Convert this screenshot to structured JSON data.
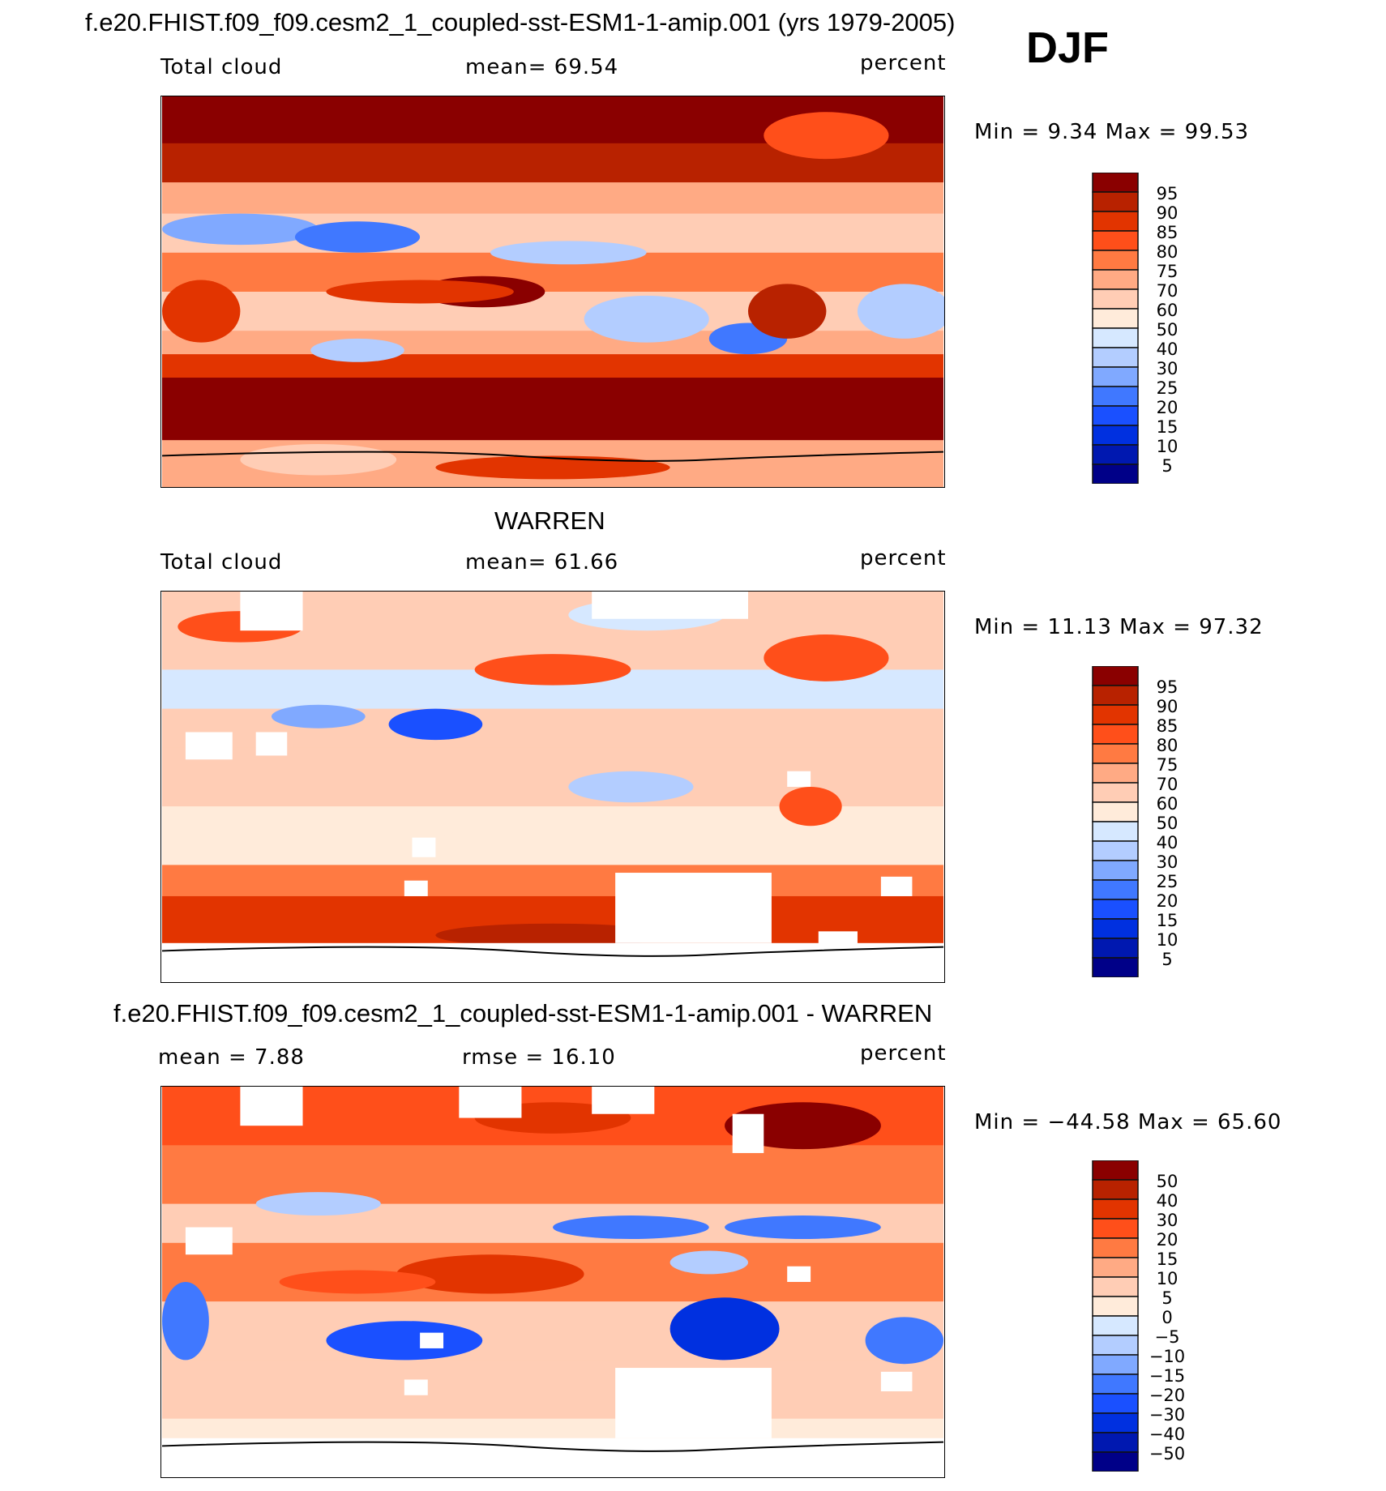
{
  "title": "f.e20.FHIST.f09_f09.cesm2_1_coupled-sst-ESM1-1-amip.001 (yrs 1979-2005)",
  "season": "DJF",
  "chart_data": [
    {
      "type": "heatmap",
      "title": "f.e20.FHIST.f09_f09.cesm2_1_coupled-sst-ESM1-1-amip.001 (yrs 1979-2005)",
      "left_label": "Total cloud",
      "center_label": "mean=   69.54",
      "units": "percent",
      "minmax": "Min =    9.34  Max =   99.53",
      "mean": 69.54,
      "min": 9.34,
      "max": 99.53,
      "colorbar_levels": [
        "95",
        "90",
        "85",
        "80",
        "75",
        "70",
        "60",
        "50",
        "40",
        "30",
        "25",
        "20",
        "15",
        "10",
        "5"
      ]
    },
    {
      "type": "heatmap",
      "title": "WARREN",
      "left_label": "Total cloud",
      "center_label": "mean=   61.66",
      "units": "percent",
      "minmax": "Min =   11.13  Max =   97.32",
      "mean": 61.66,
      "min": 11.13,
      "max": 97.32,
      "colorbar_levels": [
        "95",
        "90",
        "85",
        "80",
        "75",
        "70",
        "60",
        "50",
        "40",
        "30",
        "25",
        "20",
        "15",
        "10",
        "5"
      ]
    },
    {
      "type": "heatmap",
      "title": "f.e20.FHIST.f09_f09.cesm2_1_coupled-sst-ESM1-1-amip.001 - WARREN",
      "left_label": "mean =    7.88",
      "center_label": "rmse =   16.10",
      "units": "percent",
      "minmax": "Min = −44.58  Max =   65.60",
      "mean": 7.88,
      "rmse": 16.1,
      "min": -44.58,
      "max": 65.6,
      "colorbar_levels": [
        "50",
        "40",
        "30",
        "20",
        "15",
        "10",
        "5",
        "0",
        "−5",
        "−10",
        "−15",
        "−20",
        "−30",
        "−40",
        "−50"
      ]
    }
  ],
  "colors": [
    "#8a0000",
    "#b82200",
    "#e23400",
    "#ff4f1a",
    "#ff7a42",
    "#ffaa84",
    "#ffcdb5",
    "#ffebda",
    "#d6e8ff",
    "#b3cdff",
    "#80a9ff",
    "#4078ff",
    "#1a50ff",
    "#0030e0",
    "#0018b0",
    "#000088"
  ]
}
